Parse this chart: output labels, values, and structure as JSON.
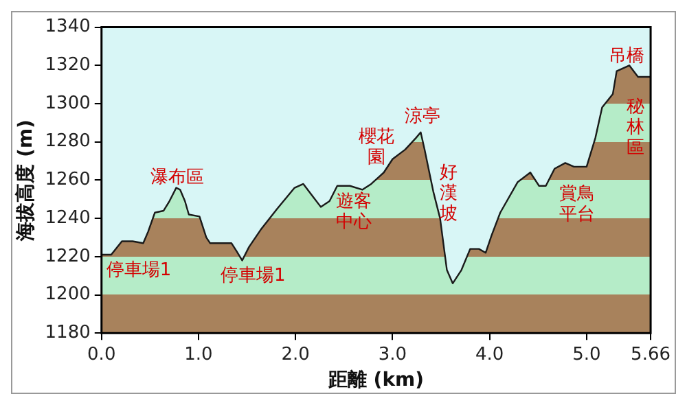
{
  "chart_data": {
    "type": "area",
    "xlabel": "距離 (km)",
    "ylabel": "海拔高度 (m)",
    "x": [
      0,
      0.1,
      0.21,
      0.32,
      0.43,
      0.48,
      0.55,
      0.64,
      0.7,
      0.77,
      0.81,
      0.86,
      0.9,
      1.01,
      1.08,
      1.12,
      1.34,
      1.39,
      1.45,
      1.52,
      1.64,
      1.81,
      1.99,
      2.08,
      2.17,
      2.26,
      2.35,
      2.43,
      2.56,
      2.69,
      2.78,
      2.91,
      3.0,
      3.13,
      3.24,
      3.29,
      3.33,
      3.42,
      3.49,
      3.56,
      3.62,
      3.71,
      3.8,
      3.89,
      3.96,
      4.02,
      4.11,
      4.29,
      4.42,
      4.51,
      4.58,
      4.67,
      4.78,
      4.87,
      5.0,
      5.09,
      5.16,
      5.27,
      5.31,
      5.44,
      5.53,
      5.66
    ],
    "series": [
      {
        "color": "#a8825c",
        "values": [
          1221,
          1221,
          1228,
          1228,
          1227,
          1233,
          1243,
          1244,
          1249,
          1256,
          1255,
          1249,
          1242,
          1241,
          1230,
          1227,
          1227,
          1223,
          1218,
          1225,
          1234,
          1245,
          1256,
          1258,
          1252,
          1246,
          1249,
          1257,
          1257,
          1255,
          1258,
          1264,
          1271,
          1276,
          1282,
          1285,
          1276,
          1254,
          1240,
          1213,
          1206,
          1213,
          1224,
          1224,
          1222,
          1231,
          1243,
          1259,
          1264,
          1257,
          1257,
          1266,
          1269,
          1267,
          1267,
          1282,
          1298,
          1305,
          1317,
          1320,
          1314,
          1314
        ]
      }
    ],
    "xlim": [
      0,
      5.66
    ],
    "xticks": [
      {
        "value": 0,
        "label": "0.0"
      },
      {
        "value": 1,
        "label": "1.0"
      },
      {
        "value": 2,
        "label": "2.0"
      },
      {
        "value": 3,
        "label": "3.0"
      },
      {
        "value": 4,
        "label": "4.0"
      },
      {
        "value": 5,
        "label": "5.0"
      },
      5.66
    ],
    "ylim": [
      1180,
      1340
    ],
    "yticks": [
      1180,
      1200,
      1220,
      1240,
      1260,
      1280,
      1300,
      1320,
      1340
    ],
    "grid": false,
    "legend": false,
    "annotations": [
      "瀑布區",
      "停車場1",
      "停車場1",
      "遊客中心",
      "櫻花園",
      "涼亭",
      "好漢坡",
      "賞鳥平台",
      "吊橋",
      "秘林區"
    ]
  }
}
